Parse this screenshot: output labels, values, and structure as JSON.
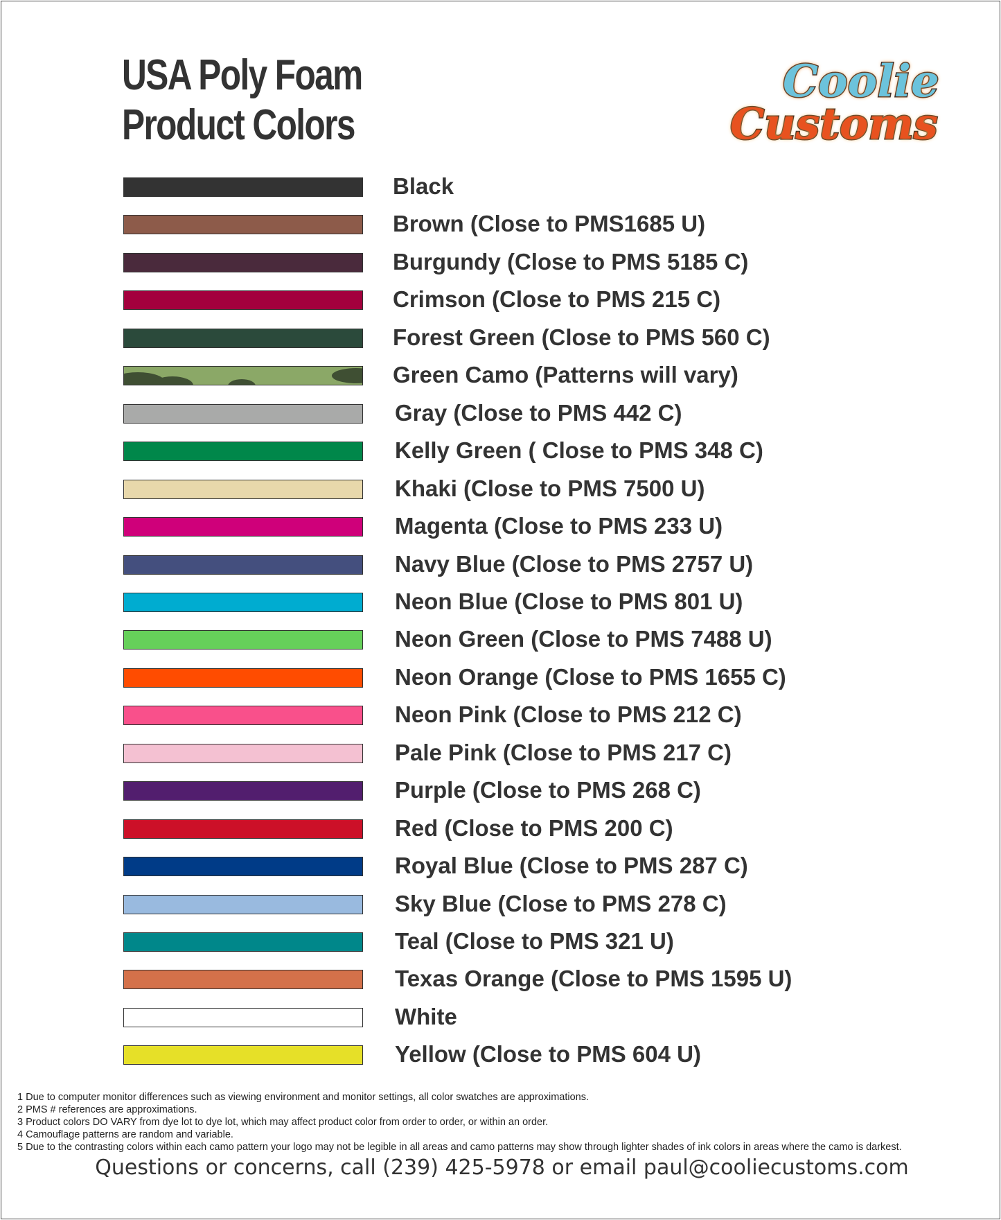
{
  "header": {
    "title_lines": [
      "USA Poly Foam",
      "Product Colors"
    ],
    "logo_lines": [
      "Coolie",
      "Customs"
    ]
  },
  "colors": [
    {
      "label": "Black",
      "color": "#333333"
    },
    {
      "label": "Brown (Close to PMS1685 U)",
      "color": "#8d5b4a"
    },
    {
      "label": "Burgundy (Close to PMS 5185 C)",
      "color": "#4a2a3c"
    },
    {
      "label": "Crimson (Close to PMS 215 C)",
      "color": "#a3003d"
    },
    {
      "label": "Forest Green (Close to PMS 560 C)",
      "color": "#2b4a3b"
    },
    {
      "label": "Green Camo (Patterns will vary)",
      "color": "#8ba867"
    },
    {
      "label": "Gray (Close to PMS 442 C)",
      "color": "#a9aaa9"
    },
    {
      "label": "Kelly Green ( Close to PMS 348 C)",
      "color": "#00874a"
    },
    {
      "label": "Khaki (Close to PMS 7500 U)",
      "color": "#e8d8ab"
    },
    {
      "label": "Magenta (Close to PMS 233 U)",
      "color": "#cf007a"
    },
    {
      "label": "Navy Blue (Close to PMS 2757 U)",
      "color": "#444f7e"
    },
    {
      "label": "Neon Blue (Close to PMS 801 U)",
      "color": "#00acd0"
    },
    {
      "label": "Neon Green (Close to PMS 7488 U)",
      "color": "#66d05a"
    },
    {
      "label": "Neon Orange (Close to PMS 1655 C)",
      "color": "#ff4c00"
    },
    {
      "label": "Neon Pink (Close to PMS 212 C)",
      "color": "#f9508b"
    },
    {
      "label": "Pale Pink (Close to PMS 217 C)",
      "color": "#f4c1d2"
    },
    {
      "label": "Purple (Close to PMS 268 C)",
      "color": "#521e6e"
    },
    {
      "label": "Red (Close to PMS 200 C)",
      "color": "#cc1028"
    },
    {
      "label": "Royal Blue (Close to PMS 287 C)",
      "color": "#003b87"
    },
    {
      "label": "Sky Blue (Close to PMS 278 C)",
      "color": "#99badf"
    },
    {
      "label": "Teal (Close to PMS 321 U)",
      "color": "#00878a"
    },
    {
      "label": "Texas Orange (Close to PMS 1595 U)",
      "color": "#d4714a"
    },
    {
      "label": "White",
      "color": "#ffffff"
    },
    {
      "label": "Yellow (Close to PMS 604 U)",
      "color": "#e6e028"
    }
  ],
  "notes": [
    "1 Due to computer monitor differences such as viewing environment and monitor settings, all color swatches are approximations.",
    "2 PMS # references are approximations.",
    "3 Product colors DO VARY from dye lot to dye lot, which may affect product color from order to order, or within an order.",
    "4 Camouflage patterns are random and variable.",
    "5 Due to the contrasting colors within each camo pattern your logo may not be legible in all areas and camo patterns may show through lighter shades of ink colors in areas where the camo is darkest."
  ],
  "contact": "Questions or concerns, call (239) 425-5978 or email paul@cooliecustoms.com"
}
